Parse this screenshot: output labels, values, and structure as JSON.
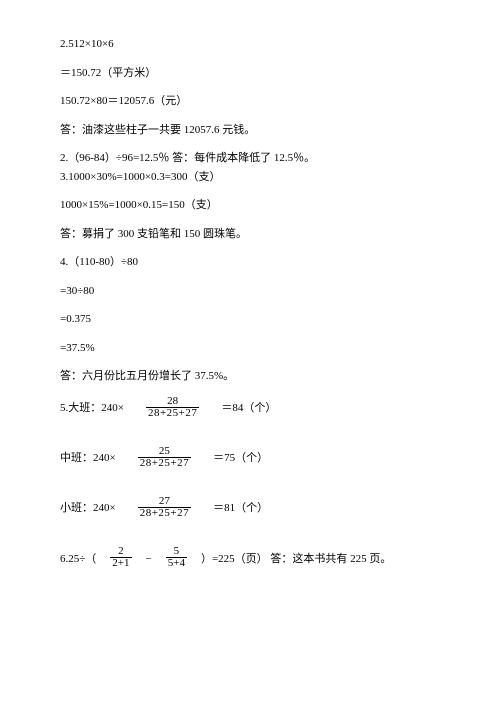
{
  "l1": "2.512×10×6",
  "l2": "＝150.72（平方米）",
  "l3": "150.72×80＝12057.6（元）",
  "l4": "答：油漆这些柱子一共要 12057.6 元钱。",
  "l5": "2.（96-84）÷96=12.5％    答：每件成本降低了 12.5％。",
  "l6": "3.1000×30%=1000×0.3=300（支）",
  "l7": "1000×15%=1000×0.15=150（支）",
  "l8": "答：募捐了 300 支铅笔和 150 圆珠笔。",
  "l9": "4.（110-80）÷80",
  "l10": "=30÷80",
  "l11": "=0.375",
  "l12": "=37.5%",
  "l13": "答：六月份比五月份增长了 37.5%。",
  "q5": {
    "a_lead": "5.大班：240×",
    "a_num": "28",
    "a_den": "28+25+27",
    "a_tail": "＝84（个）",
    "b_lead": "中班：240×",
    "b_num": "25",
    "b_den": "28+25+27",
    "b_tail": "＝75（个）",
    "c_lead": "小班：240×",
    "c_num": "27",
    "c_den": "28+25+27",
    "c_tail": "＝81（个）"
  },
  "q6": {
    "lead": "6.25÷（",
    "f1_num": "2",
    "f1_den": "2+1",
    "mid": "−",
    "f2_num": "5",
    "f2_den": "5+4",
    "tail": "）=225（页）    答：这本书共有 225 页。"
  }
}
